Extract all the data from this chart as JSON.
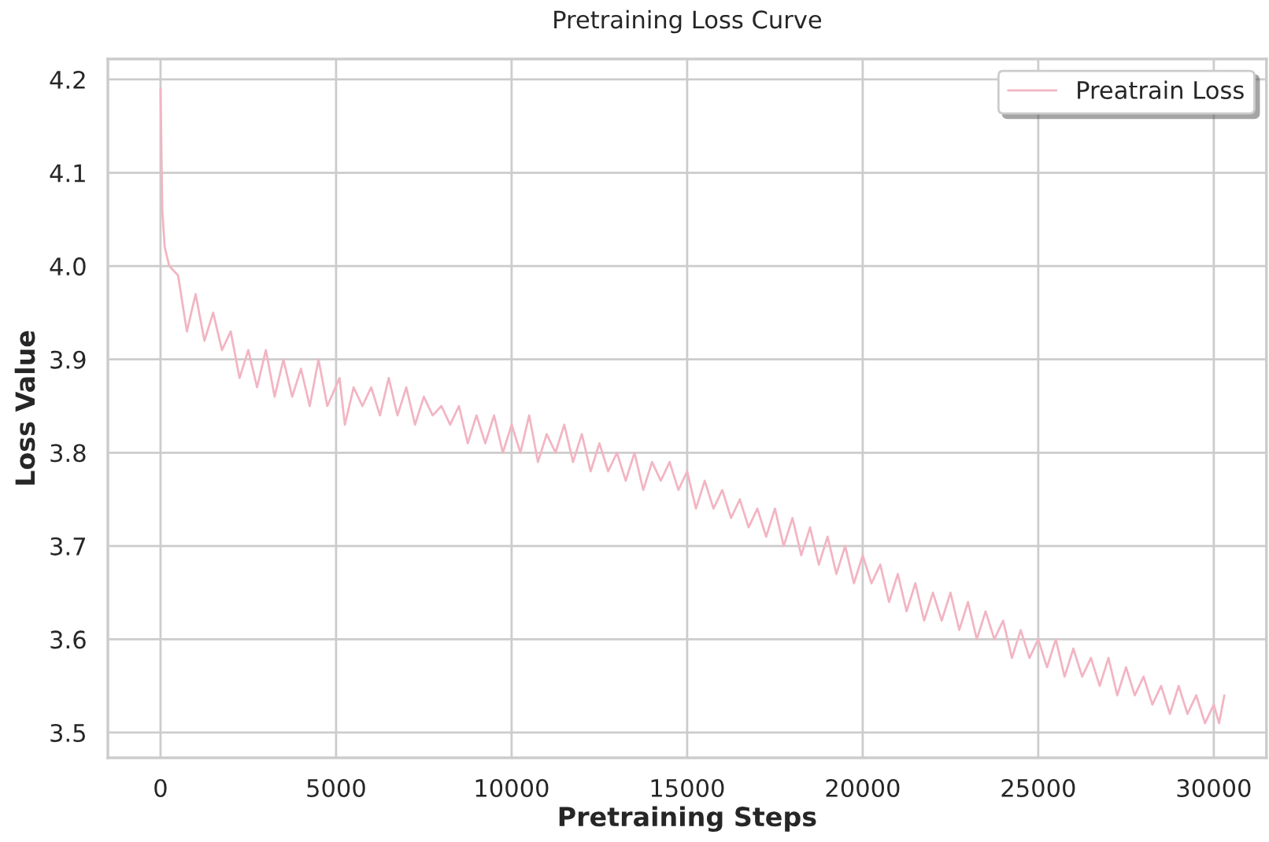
{
  "chart_data": {
    "type": "line",
    "title": "Pretraining Loss Curve",
    "xlabel": "Pretraining Steps",
    "ylabel": "Loss Value",
    "series": [
      {
        "name": "Preatrain Loss",
        "color": "#f2b5c3",
        "x": [
          0,
          50,
          120,
          250,
          500,
          750,
          1000,
          1250,
          1500,
          1750,
          2000,
          2250,
          2500,
          2750,
          3000,
          3250,
          3500,
          3750,
          4000,
          4250,
          4500,
          4750,
          5100,
          5250,
          5500,
          5750,
          6000,
          6250,
          6500,
          6750,
          7000,
          7250,
          7500,
          7750,
          8000,
          8250,
          8500,
          8750,
          9000,
          9250,
          9500,
          9750,
          10000,
          10250,
          10500,
          10750,
          11000,
          11250,
          11500,
          11750,
          12000,
          12250,
          12500,
          12750,
          13000,
          13250,
          13500,
          13750,
          14000,
          14250,
          14500,
          14750,
          15000,
          15250,
          15500,
          15750,
          16000,
          16250,
          16500,
          16750,
          17000,
          17250,
          17500,
          17750,
          18000,
          18250,
          18500,
          18750,
          19000,
          19250,
          19500,
          19750,
          20000,
          20250,
          20500,
          20750,
          21000,
          21250,
          21500,
          21750,
          22000,
          22250,
          22500,
          22750,
          23000,
          23250,
          23500,
          23750,
          24000,
          24250,
          24500,
          24750,
          25000,
          25250,
          25500,
          25750,
          26000,
          26250,
          26500,
          26750,
          27000,
          27250,
          27500,
          27750,
          28000,
          28250,
          28500,
          28750,
          29000,
          29250,
          29500,
          29750,
          30000,
          30150,
          30300
        ],
        "values": [
          4.19,
          4.06,
          4.02,
          4.0,
          3.99,
          3.93,
          3.97,
          3.92,
          3.95,
          3.91,
          3.93,
          3.88,
          3.91,
          3.87,
          3.91,
          3.86,
          3.9,
          3.86,
          3.89,
          3.85,
          3.9,
          3.85,
          3.88,
          3.83,
          3.87,
          3.85,
          3.87,
          3.84,
          3.88,
          3.84,
          3.87,
          3.83,
          3.86,
          3.84,
          3.85,
          3.83,
          3.85,
          3.81,
          3.84,
          3.81,
          3.84,
          3.8,
          3.83,
          3.8,
          3.84,
          3.79,
          3.82,
          3.8,
          3.83,
          3.79,
          3.82,
          3.78,
          3.81,
          3.78,
          3.8,
          3.77,
          3.8,
          3.76,
          3.79,
          3.77,
          3.79,
          3.76,
          3.78,
          3.74,
          3.77,
          3.74,
          3.76,
          3.73,
          3.75,
          3.72,
          3.74,
          3.71,
          3.74,
          3.7,
          3.73,
          3.69,
          3.72,
          3.68,
          3.71,
          3.67,
          3.7,
          3.66,
          3.69,
          3.66,
          3.68,
          3.64,
          3.67,
          3.63,
          3.66,
          3.62,
          3.65,
          3.62,
          3.65,
          3.61,
          3.64,
          3.6,
          3.63,
          3.6,
          3.62,
          3.58,
          3.61,
          3.58,
          3.6,
          3.57,
          3.6,
          3.56,
          3.59,
          3.56,
          3.58,
          3.55,
          3.58,
          3.54,
          3.57,
          3.54,
          3.56,
          3.53,
          3.55,
          3.52,
          3.55,
          3.52,
          3.54,
          3.51,
          3.53,
          3.51,
          3.54
        ]
      }
    ],
    "xlim": [
      -1500,
      31500
    ],
    "ylim": [
      3.473,
      4.222
    ],
    "xticks": [
      0,
      5000,
      10000,
      15000,
      20000,
      25000,
      30000
    ],
    "yticks": [
      {
        "value": 3.5,
        "label": "3.5"
      },
      {
        "value": 3.6,
        "label": "3.6"
      },
      {
        "value": 3.7,
        "label": "3.7"
      },
      {
        "value": 3.8,
        "label": "3.8"
      },
      {
        "value": 3.9,
        "label": "3.9"
      },
      {
        "value": 4.0,
        "label": "4.0"
      },
      {
        "value": 4.1,
        "label": "4.1"
      },
      {
        "value": 4.2,
        "label": "4.2"
      }
    ],
    "grid": true,
    "legend": "top right",
    "line_style": "solid",
    "marker": "none"
  }
}
